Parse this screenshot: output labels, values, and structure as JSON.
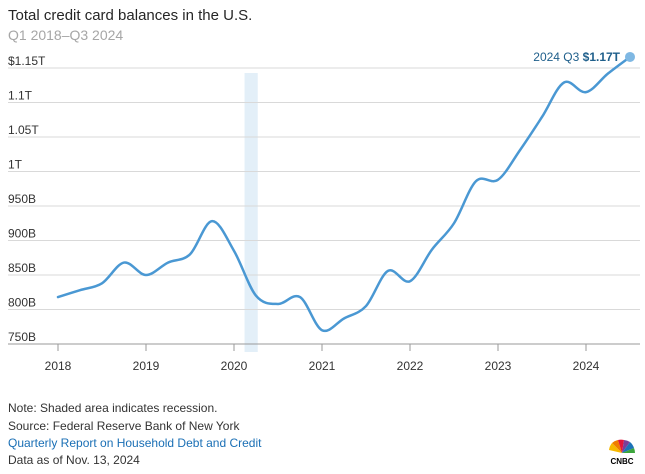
{
  "header": {
    "title": "Total credit card balances in the U.S.",
    "subtitle": "Q1 2018–Q3 2024"
  },
  "chart_data": {
    "type": "line",
    "ylim": [
      750,
      1150
    ],
    "y_ticks": [
      {
        "value": 1150,
        "label": "$1.15T"
      },
      {
        "value": 1100,
        "label": "1.1T"
      },
      {
        "value": 1050,
        "label": "1.05T"
      },
      {
        "value": 1000,
        "label": "1T"
      },
      {
        "value": 950,
        "label": "950B"
      },
      {
        "value": 900,
        "label": "900B"
      },
      {
        "value": 850,
        "label": "850B"
      },
      {
        "value": 800,
        "label": "800B"
      },
      {
        "value": 750,
        "label": "750B"
      }
    ],
    "x_ticks": [
      "2018",
      "2019",
      "2020",
      "2021",
      "2022",
      "2023",
      "2024"
    ],
    "x_tick_positions": [
      2018,
      2019,
      2020,
      2021,
      2022,
      2023,
      2024
    ],
    "xlim": [
      2018,
      2024.6
    ],
    "recession": {
      "start": 2020.12,
      "end": 2020.27
    },
    "grid": true,
    "series": [
      {
        "color": "#4a98d3",
        "points": [
          {
            "x": 2018.0,
            "y": 818
          },
          {
            "x": 2018.25,
            "y": 828
          },
          {
            "x": 2018.5,
            "y": 838
          },
          {
            "x": 2018.75,
            "y": 868
          },
          {
            "x": 2019.0,
            "y": 850
          },
          {
            "x": 2019.25,
            "y": 868
          },
          {
            "x": 2019.5,
            "y": 880
          },
          {
            "x": 2019.75,
            "y": 928
          },
          {
            "x": 2020.0,
            "y": 885
          },
          {
            "x": 2020.25,
            "y": 820
          },
          {
            "x": 2020.5,
            "y": 808
          },
          {
            "x": 2020.75,
            "y": 818
          },
          {
            "x": 2021.0,
            "y": 770
          },
          {
            "x": 2021.25,
            "y": 787
          },
          {
            "x": 2021.5,
            "y": 805
          },
          {
            "x": 2021.75,
            "y": 856
          },
          {
            "x": 2022.0,
            "y": 841
          },
          {
            "x": 2022.25,
            "y": 887
          },
          {
            "x": 2022.5,
            "y": 925
          },
          {
            "x": 2022.75,
            "y": 986
          },
          {
            "x": 2023.0,
            "y": 988
          },
          {
            "x": 2023.25,
            "y": 1031
          },
          {
            "x": 2023.5,
            "y": 1079
          },
          {
            "x": 2023.75,
            "y": 1129
          },
          {
            "x": 2024.0,
            "y": 1115
          },
          {
            "x": 2024.25,
            "y": 1142
          },
          {
            "x": 2024.5,
            "y": 1166
          }
        ]
      }
    ],
    "annotation": {
      "prefix": "2024 Q3 ",
      "value": "$1.17T",
      "x": 2024.5,
      "y": 1166
    }
  },
  "footer": {
    "note": "Note: Shaded area indicates recession.",
    "source": "Source: Federal Reserve Bank of New York",
    "link": "Quarterly Report on Household Debt and Credit",
    "date": "Data as of Nov. 13, 2024"
  },
  "logo": {
    "text": "CNBC"
  }
}
